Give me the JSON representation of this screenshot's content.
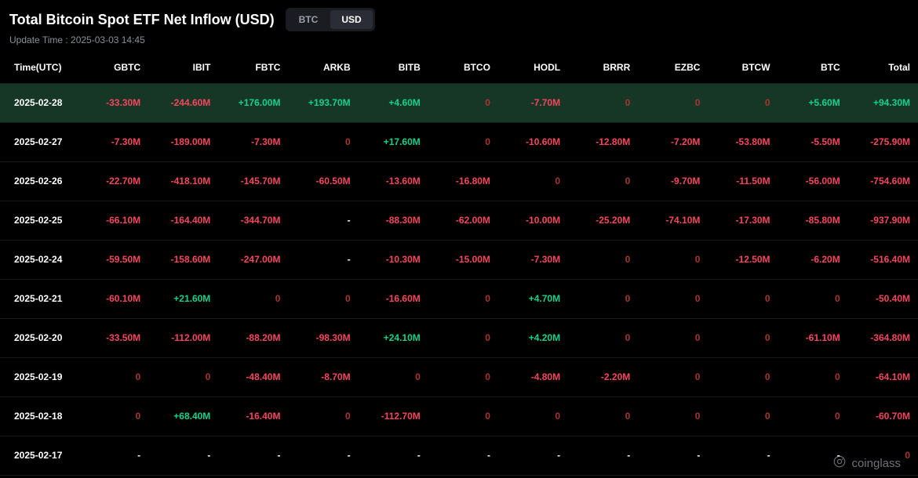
{
  "header": {
    "title": "Total Bitcoin Spot ETF Net Inflow (USD)",
    "toggle": {
      "btc": "BTC",
      "usd": "USD",
      "active": "usd"
    },
    "update": "Update Time : 2025-03-03 14:45"
  },
  "columns": [
    "Time(UTC)",
    "GBTC",
    "IBIT",
    "FBTC",
    "ARKB",
    "BITB",
    "BTCO",
    "HODL",
    "BRRR",
    "EZBC",
    "BTCW",
    "BTC",
    "Total"
  ],
  "colors": {
    "positive": "#16d18b",
    "negative": "#f6465d",
    "zero": "#a8362f",
    "dash": "#ffffff",
    "highlight_bg": "#163626",
    "text": "#ffffff",
    "muted": "#8b8f9a",
    "background": "#000000"
  },
  "rows": [
    {
      "date": "2025-02-28",
      "highlight": true,
      "cells": [
        {
          "v": "-33.30M",
          "t": "neg"
        },
        {
          "v": "-244.60M",
          "t": "neg"
        },
        {
          "v": "+176.00M",
          "t": "pos"
        },
        {
          "v": "+193.70M",
          "t": "pos"
        },
        {
          "v": "+4.60M",
          "t": "pos"
        },
        {
          "v": "0",
          "t": "zero"
        },
        {
          "v": "-7.70M",
          "t": "neg"
        },
        {
          "v": "0",
          "t": "zero"
        },
        {
          "v": "0",
          "t": "zero"
        },
        {
          "v": "0",
          "t": "zero"
        },
        {
          "v": "+5.60M",
          "t": "pos"
        },
        {
          "v": "+94.30M",
          "t": "pos"
        }
      ]
    },
    {
      "date": "2025-02-27",
      "cells": [
        {
          "v": "-7.30M",
          "t": "neg"
        },
        {
          "v": "-189.00M",
          "t": "neg"
        },
        {
          "v": "-7.30M",
          "t": "neg"
        },
        {
          "v": "0",
          "t": "zero"
        },
        {
          "v": "+17.60M",
          "t": "pos"
        },
        {
          "v": "0",
          "t": "zero"
        },
        {
          "v": "-10.60M",
          "t": "neg"
        },
        {
          "v": "-12.80M",
          "t": "neg"
        },
        {
          "v": "-7.20M",
          "t": "neg"
        },
        {
          "v": "-53.80M",
          "t": "neg"
        },
        {
          "v": "-5.50M",
          "t": "neg"
        },
        {
          "v": "-275.90M",
          "t": "neg"
        }
      ]
    },
    {
      "date": "2025-02-26",
      "cells": [
        {
          "v": "-22.70M",
          "t": "neg"
        },
        {
          "v": "-418.10M",
          "t": "neg"
        },
        {
          "v": "-145.70M",
          "t": "neg"
        },
        {
          "v": "-60.50M",
          "t": "neg"
        },
        {
          "v": "-13.60M",
          "t": "neg"
        },
        {
          "v": "-16.80M",
          "t": "neg"
        },
        {
          "v": "0",
          "t": "zero"
        },
        {
          "v": "0",
          "t": "zero"
        },
        {
          "v": "-9.70M",
          "t": "neg"
        },
        {
          "v": "-11.50M",
          "t": "neg"
        },
        {
          "v": "-56.00M",
          "t": "neg"
        },
        {
          "v": "-754.60M",
          "t": "neg"
        }
      ]
    },
    {
      "date": "2025-02-25",
      "cells": [
        {
          "v": "-66.10M",
          "t": "neg"
        },
        {
          "v": "-164.40M",
          "t": "neg"
        },
        {
          "v": "-344.70M",
          "t": "neg"
        },
        {
          "v": "-",
          "t": "dash"
        },
        {
          "v": "-88.30M",
          "t": "neg"
        },
        {
          "v": "-62.00M",
          "t": "neg"
        },
        {
          "v": "-10.00M",
          "t": "neg"
        },
        {
          "v": "-25.20M",
          "t": "neg"
        },
        {
          "v": "-74.10M",
          "t": "neg"
        },
        {
          "v": "-17.30M",
          "t": "neg"
        },
        {
          "v": "-85.80M",
          "t": "neg"
        },
        {
          "v": "-937.90M",
          "t": "neg"
        }
      ]
    },
    {
      "date": "2025-02-24",
      "cells": [
        {
          "v": "-59.50M",
          "t": "neg"
        },
        {
          "v": "-158.60M",
          "t": "neg"
        },
        {
          "v": "-247.00M",
          "t": "neg"
        },
        {
          "v": "-",
          "t": "dash"
        },
        {
          "v": "-10.30M",
          "t": "neg"
        },
        {
          "v": "-15.00M",
          "t": "neg"
        },
        {
          "v": "-7.30M",
          "t": "neg"
        },
        {
          "v": "0",
          "t": "zero"
        },
        {
          "v": "0",
          "t": "zero"
        },
        {
          "v": "-12.50M",
          "t": "neg"
        },
        {
          "v": "-6.20M",
          "t": "neg"
        },
        {
          "v": "-516.40M",
          "t": "neg"
        }
      ]
    },
    {
      "date": "2025-02-21",
      "cells": [
        {
          "v": "-60.10M",
          "t": "neg"
        },
        {
          "v": "+21.60M",
          "t": "pos"
        },
        {
          "v": "0",
          "t": "zero"
        },
        {
          "v": "0",
          "t": "zero"
        },
        {
          "v": "-16.60M",
          "t": "neg"
        },
        {
          "v": "0",
          "t": "zero"
        },
        {
          "v": "+4.70M",
          "t": "pos"
        },
        {
          "v": "0",
          "t": "zero"
        },
        {
          "v": "0",
          "t": "zero"
        },
        {
          "v": "0",
          "t": "zero"
        },
        {
          "v": "0",
          "t": "zero"
        },
        {
          "v": "-50.40M",
          "t": "neg"
        }
      ]
    },
    {
      "date": "2025-02-20",
      "cells": [
        {
          "v": "-33.50M",
          "t": "neg"
        },
        {
          "v": "-112.00M",
          "t": "neg"
        },
        {
          "v": "-88.20M",
          "t": "neg"
        },
        {
          "v": "-98.30M",
          "t": "neg"
        },
        {
          "v": "+24.10M",
          "t": "pos"
        },
        {
          "v": "0",
          "t": "zero"
        },
        {
          "v": "+4.20M",
          "t": "pos"
        },
        {
          "v": "0",
          "t": "zero"
        },
        {
          "v": "0",
          "t": "zero"
        },
        {
          "v": "0",
          "t": "zero"
        },
        {
          "v": "-61.10M",
          "t": "neg"
        },
        {
          "v": "-364.80M",
          "t": "neg"
        }
      ]
    },
    {
      "date": "2025-02-19",
      "cells": [
        {
          "v": "0",
          "t": "zero"
        },
        {
          "v": "0",
          "t": "zero"
        },
        {
          "v": "-48.40M",
          "t": "neg"
        },
        {
          "v": "-8.70M",
          "t": "neg"
        },
        {
          "v": "0",
          "t": "zero"
        },
        {
          "v": "0",
          "t": "zero"
        },
        {
          "v": "-4.80M",
          "t": "neg"
        },
        {
          "v": "-2.20M",
          "t": "neg"
        },
        {
          "v": "0",
          "t": "zero"
        },
        {
          "v": "0",
          "t": "zero"
        },
        {
          "v": "0",
          "t": "zero"
        },
        {
          "v": "-64.10M",
          "t": "neg"
        }
      ]
    },
    {
      "date": "2025-02-18",
      "cells": [
        {
          "v": "0",
          "t": "zero"
        },
        {
          "v": "+68.40M",
          "t": "pos"
        },
        {
          "v": "-16.40M",
          "t": "neg"
        },
        {
          "v": "0",
          "t": "zero"
        },
        {
          "v": "-112.70M",
          "t": "neg"
        },
        {
          "v": "0",
          "t": "zero"
        },
        {
          "v": "0",
          "t": "zero"
        },
        {
          "v": "0",
          "t": "zero"
        },
        {
          "v": "0",
          "t": "zero"
        },
        {
          "v": "0",
          "t": "zero"
        },
        {
          "v": "0",
          "t": "zero"
        },
        {
          "v": "-60.70M",
          "t": "neg"
        }
      ]
    },
    {
      "date": "2025-02-17",
      "cells": [
        {
          "v": "-",
          "t": "dash"
        },
        {
          "v": "-",
          "t": "dash"
        },
        {
          "v": "-",
          "t": "dash"
        },
        {
          "v": "-",
          "t": "dash"
        },
        {
          "v": "-",
          "t": "dash"
        },
        {
          "v": "-",
          "t": "dash"
        },
        {
          "v": "-",
          "t": "dash"
        },
        {
          "v": "-",
          "t": "dash"
        },
        {
          "v": "-",
          "t": "dash"
        },
        {
          "v": "-",
          "t": "dash"
        },
        {
          "v": "-",
          "t": "dash"
        },
        {
          "v": "0",
          "t": "zero"
        }
      ]
    }
  ],
  "watermark": "coinglass"
}
